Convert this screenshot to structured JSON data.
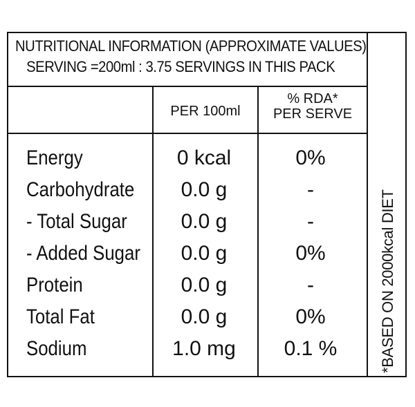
{
  "header": {
    "line1": "NUTRITIONAL INFORMATION (APPROXIMATE VALUES)",
    "line2": "SERVING =200ml : 3.75 SERVINGS IN THIS PACK"
  },
  "columns": {
    "per_100ml": "PER 100ml",
    "rda_line1": "% RDA*",
    "rda_line2": "PER SERVE"
  },
  "rows": [
    {
      "name": "Energy",
      "per_100ml": "0 kcal",
      "rda": "0%"
    },
    {
      "name": "Carbohydrate",
      "per_100ml": "0.0 g",
      "rda": "-"
    },
    {
      "name": "- Total Sugar",
      "per_100ml": "0.0 g",
      "rda": "-"
    },
    {
      "name": "- Added Sugar",
      "per_100ml": "0.0 g",
      "rda": "0%"
    },
    {
      "name": "Protein",
      "per_100ml": "0.0 g",
      "rda": "-"
    },
    {
      "name": "Total Fat",
      "per_100ml": "0.0 g",
      "rda": "0%"
    },
    {
      "name": "Sodium",
      "per_100ml": "1.0 mg",
      "rda": "0.1 %"
    }
  ],
  "footnote": "*BASED ON 2000kcal DIET"
}
